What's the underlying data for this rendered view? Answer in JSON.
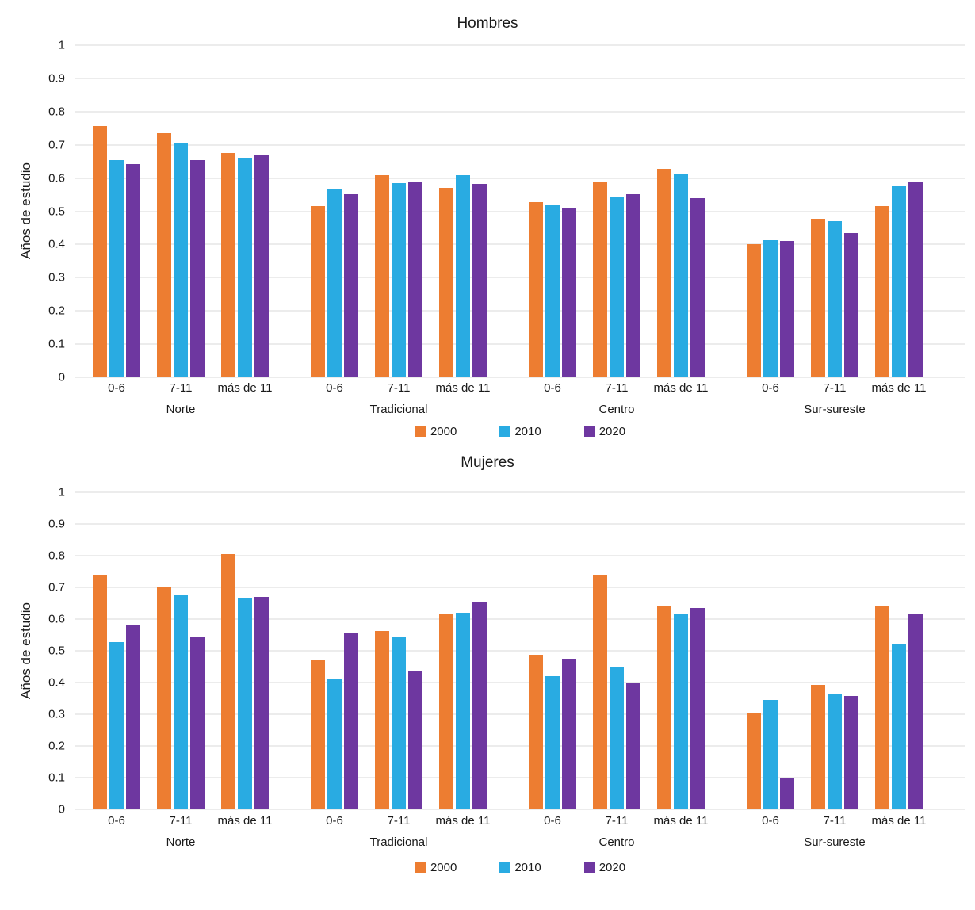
{
  "page": {
    "background": "#ffffff",
    "text_color": "#1a1a1a",
    "gridline_color": "#d9d9d9"
  },
  "chart_data": [
    {
      "type": "bar",
      "title": "Hombres",
      "ylabel": "Años de estudio",
      "xlabel": "",
      "ylim": [
        0,
        1
      ],
      "grid": true,
      "legend_position": "bottom",
      "y_tick_labels": [
        "1",
        "0.9",
        "0.8",
        "0.7",
        "0.6",
        "0.5",
        "0.4",
        "0.3",
        "0.2",
        "0.1",
        "0"
      ],
      "groups": [
        "Norte",
        "Tradicional",
        "Centro",
        "Sur-sureste"
      ],
      "categories": [
        "0-6",
        "7-11",
        "más de 11"
      ],
      "series": [
        {
          "name": "2000",
          "color": "#ED7D31",
          "values": [
            [
              0.757,
              0.734,
              0.676
            ],
            [
              0.516,
              0.609,
              0.571
            ],
            [
              0.528,
              0.589,
              0.627
            ],
            [
              0.401,
              0.477,
              0.516
            ]
          ]
        },
        {
          "name": "2010",
          "color": "#29ABE2",
          "values": [
            [
              0.653,
              0.704,
              0.661
            ],
            [
              0.567,
              0.585,
              0.609
            ],
            [
              0.517,
              0.541,
              0.61
            ],
            [
              0.414,
              0.47,
              0.575
            ]
          ]
        },
        {
          "name": "2020",
          "color": "#6E37A0",
          "values": [
            [
              0.643,
              0.653,
              0.67
            ],
            [
              0.551,
              0.588,
              0.582
            ],
            [
              0.509,
              0.551,
              0.539
            ],
            [
              0.411,
              0.434,
              0.588
            ]
          ]
        }
      ]
    },
    {
      "type": "bar",
      "title": "Mujeres",
      "ylabel": "Años de estudio",
      "xlabel": "",
      "ylim": [
        0,
        1
      ],
      "grid": true,
      "legend_position": "bottom",
      "y_tick_labels": [
        "1",
        "0.9",
        "0.8",
        "0.7",
        "0.6",
        "0.5",
        "0.4",
        "0.3",
        "0.2",
        "0.1",
        "0"
      ],
      "groups": [
        "Norte",
        "Tradicional",
        "Centro",
        "Sur-sureste"
      ],
      "categories": [
        "0-6",
        "7-11",
        "más de 11"
      ],
      "series": [
        {
          "name": "2000",
          "color": "#ED7D31",
          "values": [
            [
              0.739,
              0.702,
              0.805
            ],
            [
              0.473,
              0.563,
              0.615
            ],
            [
              0.488,
              0.738,
              0.643
            ],
            [
              0.304,
              0.393,
              0.642
            ]
          ]
        },
        {
          "name": "2010",
          "color": "#29ABE2",
          "values": [
            [
              0.527,
              0.678,
              0.664
            ],
            [
              0.412,
              0.545,
              0.62
            ],
            [
              0.42,
              0.449,
              0.614
            ],
            [
              0.346,
              0.366,
              0.521
            ]
          ]
        },
        {
          "name": "2020",
          "color": "#6E37A0",
          "values": [
            [
              0.579,
              0.545,
              0.67
            ],
            [
              0.554,
              0.437,
              0.656
            ],
            [
              0.475,
              0.4,
              0.635
            ],
            [
              0.1,
              0.358,
              0.617
            ]
          ]
        }
      ]
    }
  ]
}
